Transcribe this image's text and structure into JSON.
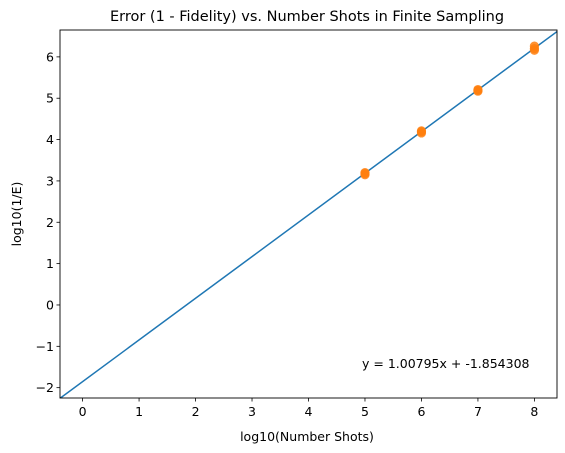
{
  "chart_data": {
    "type": "scatter",
    "title": "Error (1 - Fidelity) vs. Number Shots in Finite Sampling",
    "xlabel": "log10(Number Shots)",
    "ylabel": "log10(1/E)",
    "xlim": [
      -0.4,
      8.4
    ],
    "ylim": [
      -2.25,
      6.65
    ],
    "x_ticks": [
      0,
      1,
      2,
      3,
      4,
      5,
      6,
      7,
      8
    ],
    "y_ticks": [
      -2,
      -1,
      0,
      1,
      2,
      3,
      4,
      5,
      6
    ],
    "x_tick_labels": [
      "0",
      "1",
      "2",
      "3",
      "4",
      "5",
      "6",
      "7",
      "8"
    ],
    "y_tick_labels": [
      "−2",
      "−1",
      "0",
      "1",
      "2",
      "3",
      "4",
      "5",
      "6"
    ],
    "grid": false,
    "series": [
      {
        "points": [
          {
            "x": 5,
            "y": 3.15
          },
          {
            "x": 5,
            "y": 3.2
          },
          {
            "x": 5,
            "y": 3.18
          },
          {
            "x": 6,
            "y": 4.16
          },
          {
            "x": 6,
            "y": 4.21
          },
          {
            "x": 6,
            "y": 4.19
          },
          {
            "x": 7,
            "y": 5.17
          },
          {
            "x": 7,
            "y": 5.21
          },
          {
            "x": 7,
            "y": 5.19
          },
          {
            "x": 8,
            "y": 6.16
          },
          {
            "x": 8,
            "y": 6.26
          },
          {
            "x": 8,
            "y": 6.2
          }
        ],
        "color": "#ff7f0e"
      }
    ],
    "fit_line": {
      "slope": 1.00795,
      "intercept": -1.854308,
      "color": "#1f77b4"
    },
    "annotation": "y = 1.00795x + -1.854308"
  }
}
